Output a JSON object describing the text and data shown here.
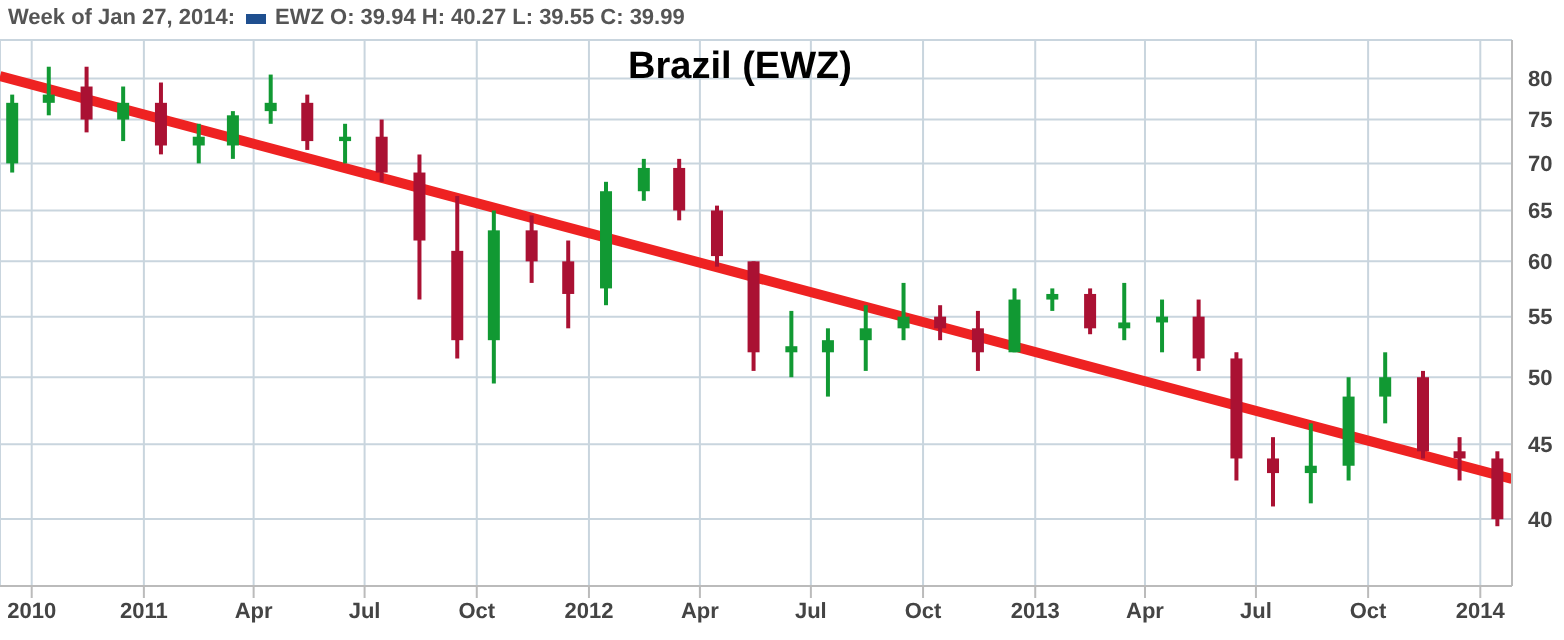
{
  "chart_data": {
    "type": "candlestick",
    "title": "Brazil (EWZ)",
    "annotations": [
      "Week of Jan 27, 2014:",
      "EWZ O: 39.94 H: 40.27 L: 39.55 C: 39.99"
    ],
    "x": [
      "2010-09-15",
      "2010-10-15",
      "2010-11-15",
      "2010-12-15",
      "2011-01-15",
      "2011-02-15",
      "2011-03-15",
      "2011-04-15",
      "2011-05-15",
      "2011-06-15",
      "2011-07-15",
      "2011-08-15",
      "2011-09-15",
      "2011-10-15",
      "2011-11-15",
      "2011-12-15",
      "2012-01-15",
      "2012-02-15",
      "2012-03-15",
      "2012-04-15",
      "2012-05-15",
      "2012-06-15",
      "2012-07-15",
      "2012-08-15",
      "2012-09-15",
      "2012-10-15",
      "2012-11-15",
      "2012-12-15",
      "2013-01-15",
      "2013-02-15",
      "2013-03-15",
      "2013-04-15",
      "2013-05-15",
      "2013-06-15",
      "2013-07-15",
      "2013-08-15",
      "2013-09-15",
      "2013-10-15",
      "2013-11-15",
      "2013-12-15",
      "2014-01-15"
    ],
    "ohlc": [
      [
        70,
        78,
        69,
        77
      ],
      [
        77,
        81.5,
        75.5,
        78
      ],
      [
        79,
        81.5,
        73.5,
        75
      ],
      [
        75,
        79,
        72.5,
        77
      ],
      [
        77,
        79.5,
        71,
        72
      ],
      [
        72,
        74.5,
        70,
        73
      ],
      [
        72,
        76,
        70.5,
        75.5
      ],
      [
        76,
        80.5,
        74.5,
        77
      ],
      [
        77,
        78,
        71.5,
        72.5
      ],
      [
        72.5,
        74.5,
        70,
        73
      ],
      [
        73,
        75,
        68,
        69
      ],
      [
        69,
        71,
        56.5,
        62
      ],
      [
        61,
        66.5,
        51.5,
        53
      ],
      [
        53,
        65,
        49.5,
        63
      ],
      [
        63,
        64.5,
        58,
        60
      ],
      [
        60,
        62,
        54,
        57
      ],
      [
        57.5,
        68,
        56,
        67
      ],
      [
        67,
        70.5,
        66,
        69.5
      ],
      [
        69.5,
        70.5,
        64,
        65
      ],
      [
        65,
        65.5,
        59.5,
        60.5
      ],
      [
        60,
        60,
        50.5,
        52
      ],
      [
        52,
        55.5,
        50,
        52.5
      ],
      [
        52,
        54,
        48.5,
        53
      ],
      [
        53,
        56,
        50.5,
        54
      ],
      [
        54,
        58,
        53,
        55
      ],
      [
        55,
        56,
        53,
        54
      ],
      [
        54,
        55.5,
        50.5,
        52
      ],
      [
        52,
        57.5,
        52,
        56.5
      ],
      [
        56.5,
        57.5,
        55.5,
        57
      ],
      [
        57,
        57.5,
        53.5,
        54
      ],
      [
        54,
        58,
        53,
        54.5
      ],
      [
        54.5,
        56.5,
        52,
        55
      ],
      [
        55,
        56.5,
        50.5,
        51.5
      ],
      [
        51.5,
        52,
        42.5,
        44
      ],
      [
        44,
        45.5,
        40.8,
        43
      ],
      [
        43,
        46.5,
        41,
        43.5
      ],
      [
        43.5,
        50,
        42.5,
        48.5
      ],
      [
        48.5,
        52,
        46.5,
        50
      ],
      [
        50,
        50.5,
        44,
        44.5
      ],
      [
        44.5,
        45.5,
        42.5,
        44
      ],
      [
        44,
        44.5,
        39.55,
        39.99
      ]
    ],
    "colors": [
      "#119933",
      "#119933",
      "#aa1133",
      "#119933",
      "#aa1133",
      "#119933",
      "#119933",
      "#119933",
      "#aa1133",
      "#119933",
      "#aa1133",
      "#aa1133",
      "#aa1133",
      "#119933",
      "#aa1133",
      "#aa1133",
      "#119933",
      "#119933",
      "#aa1133",
      "#aa1133",
      "#aa1133",
      "#119933",
      "#119933",
      "#119933",
      "#119933",
      "#aa1133",
      "#aa1133",
      "#119933",
      "#119933",
      "#aa1133",
      "#119933",
      "#119933",
      "#aa1133",
      "#aa1133",
      "#aa1133",
      "#119933",
      "#119933",
      "#119933",
      "#aa1133",
      "#aa1133",
      "#aa1133"
    ],
    "series": [
      {
        "type": "line",
        "color": "#ee2222",
        "x": [
          "2010-09-05",
          "2014-01-27"
        ],
        "values": [
          80.3,
          42.6
        ]
      }
    ],
    "xlim": [
      "2010-09-05",
      "2014-01-27"
    ],
    "xticks": [
      {
        "value": "2010-10-01",
        "label": "2010"
      },
      {
        "value": "2011-01-01",
        "label": "2011"
      },
      {
        "value": "2011-04-01",
        "label": "Apr"
      },
      {
        "value": "2011-07-01",
        "label": "Jul"
      },
      {
        "value": "2011-10-01",
        "label": "Oct"
      },
      {
        "value": "2012-01-01",
        "label": "2012"
      },
      {
        "value": "2012-04-01",
        "label": "Apr"
      },
      {
        "value": "2012-07-01",
        "label": "Jul"
      },
      {
        "value": "2012-10-01",
        "label": "Oct"
      },
      {
        "value": "2013-01-01",
        "label": "2013"
      },
      {
        "value": "2013-04-01",
        "label": "Apr"
      },
      {
        "value": "2013-07-01",
        "label": "Jul"
      },
      {
        "value": "2013-10-01",
        "label": "Oct"
      },
      {
        "value": "2014-01-01",
        "label": "2014"
      }
    ],
    "ylim": [
      36,
      85
    ],
    "yticks": [
      40,
      45,
      50,
      55,
      60,
      65,
      70,
      75,
      80
    ],
    "log": "y",
    "grid": true
  }
}
